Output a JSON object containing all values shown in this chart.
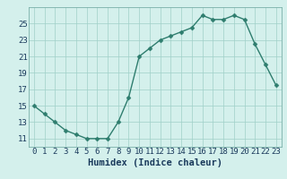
{
  "x": [
    0,
    1,
    2,
    3,
    4,
    5,
    6,
    7,
    8,
    9,
    10,
    11,
    12,
    13,
    14,
    15,
    16,
    17,
    18,
    19,
    20,
    21,
    22,
    23
  ],
  "y": [
    15,
    14,
    13,
    12,
    11.5,
    11,
    11,
    11,
    13,
    16,
    21,
    22,
    23,
    23.5,
    24,
    24.5,
    26,
    25.5,
    25.5,
    26,
    25.5,
    22.5,
    20,
    17.5
  ],
  "line_color": "#2e7d6e",
  "marker_color": "#2e7d6e",
  "bg_color": "#d4f0ec",
  "grid_color": "#a0cfc8",
  "title": "",
  "xlabel": "Humidex (Indice chaleur)",
  "ylabel": "",
  "xlim": [
    -0.5,
    23.5
  ],
  "ylim": [
    10,
    27
  ],
  "yticks": [
    11,
    13,
    15,
    17,
    19,
    21,
    23,
    25
  ],
  "xlabel_fontsize": 7.5,
  "tick_fontsize": 6.5,
  "line_width": 1.0,
  "marker_size": 2.5
}
